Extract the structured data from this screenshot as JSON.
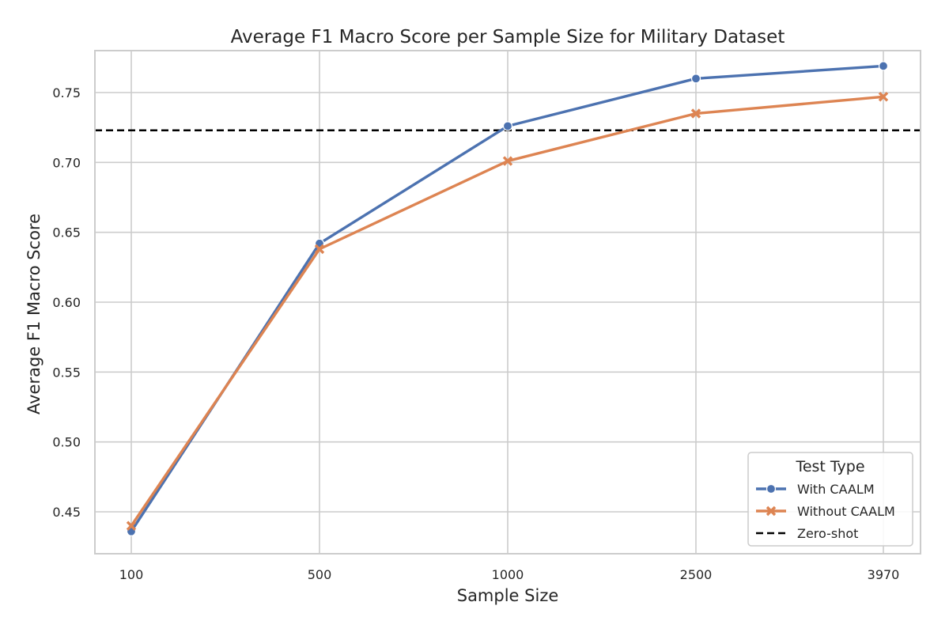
{
  "chart_data": {
    "type": "line",
    "title": "Average F1 Macro Score per Sample Size for Military Dataset",
    "xlabel": "Sample Size",
    "ylabel": "Average F1 Macro Score",
    "categories": [
      "100",
      "500",
      "1000",
      "2500",
      "3970"
    ],
    "ylim": [
      0.42,
      0.78
    ],
    "yticks": [
      "0.45",
      "0.50",
      "0.55",
      "0.60",
      "0.65",
      "0.70",
      "0.75"
    ],
    "grid": true,
    "series": [
      {
        "name": "With CAALM",
        "color": "#4c72b0",
        "marker": "circle",
        "values": [
          0.436,
          0.642,
          0.726,
          0.76,
          0.769
        ]
      },
      {
        "name": "Without CAALM",
        "color": "#dd8452",
        "marker": "x",
        "values": [
          0.44,
          0.638,
          0.701,
          0.735,
          0.747
        ]
      }
    ],
    "reference_line": {
      "name": "Zero-shot",
      "value": 0.723,
      "color": "#000000",
      "style": "dashed"
    },
    "legend": {
      "title": "Test Type",
      "position": "lower-right"
    }
  }
}
